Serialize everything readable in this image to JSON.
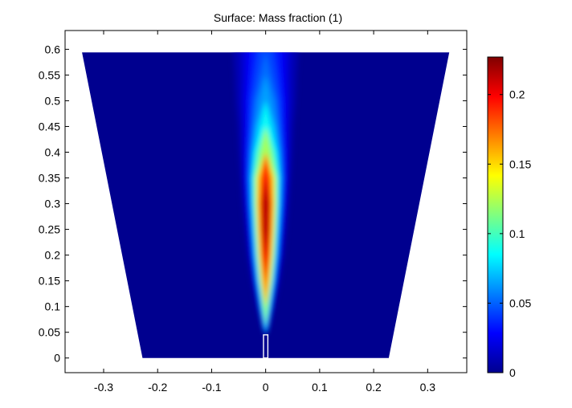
{
  "chart_data": {
    "type": "heatmap",
    "title": "Surface: Mass fraction (1)",
    "xlabel": "",
    "ylabel": "",
    "xlim": [
      -0.3714,
      0.3724
    ],
    "ylim": [
      -0.0285,
      0.6365
    ],
    "x_ticks": [
      -0.3,
      -0.2,
      -0.1,
      0,
      0.1,
      0.2,
      0.3
    ],
    "x_tick_labels": [
      "-0.3",
      "-0.2",
      "-0.1",
      "0",
      "0.1",
      "0.2",
      "0.3"
    ],
    "y_ticks": [
      0,
      0.05,
      0.1,
      0.15,
      0.2,
      0.25,
      0.3,
      0.35,
      0.4,
      0.45,
      0.5,
      0.55,
      0.6
    ],
    "y_tick_labels": [
      "0",
      "0.05",
      "0.1",
      "0.15",
      "0.2",
      "0.25",
      "0.3",
      "0.35",
      "0.4",
      "0.45",
      "0.5",
      "0.55",
      "0.6"
    ],
    "domain_outline": [
      [
        -0.228,
        0
      ],
      [
        0.228,
        0
      ],
      [
        0.34,
        0.594
      ],
      [
        -0.34,
        0.594
      ]
    ],
    "inlet_slot": {
      "x": [
        -0.004,
        0.004
      ],
      "y": [
        0,
        0.045
      ]
    },
    "colorbar": {
      "min": 0,
      "max": 0.227,
      "ticks": [
        0,
        0.05,
        0.1,
        0.15,
        0.2
      ],
      "tick_labels": [
        "0",
        "0.05",
        "0.1",
        "0.15",
        "0.2"
      ],
      "colormap": "jet"
    },
    "plume_profile": [
      {
        "y": 0.045,
        "centerline_value": 0.0,
        "half_width": 0.003
      },
      {
        "y": 0.06,
        "centerline_value": 0.08,
        "half_width": 0.004
      },
      {
        "y": 0.1,
        "centerline_value": 0.13,
        "half_width": 0.008
      },
      {
        "y": 0.15,
        "centerline_value": 0.18,
        "half_width": 0.012
      },
      {
        "y": 0.2,
        "centerline_value": 0.21,
        "half_width": 0.015
      },
      {
        "y": 0.25,
        "centerline_value": 0.225,
        "half_width": 0.017
      },
      {
        "y": 0.3,
        "centerline_value": 0.225,
        "half_width": 0.019
      },
      {
        "y": 0.35,
        "centerline_value": 0.2,
        "half_width": 0.021
      },
      {
        "y": 0.4,
        "centerline_value": 0.13,
        "half_width": 0.024
      },
      {
        "y": 0.45,
        "centerline_value": 0.09,
        "half_width": 0.027
      },
      {
        "y": 0.5,
        "centerline_value": 0.07,
        "half_width": 0.031
      },
      {
        "y": 0.55,
        "centerline_value": 0.055,
        "half_width": 0.034
      },
      {
        "y": 0.594,
        "centerline_value": 0.048,
        "half_width": 0.037
      }
    ]
  }
}
